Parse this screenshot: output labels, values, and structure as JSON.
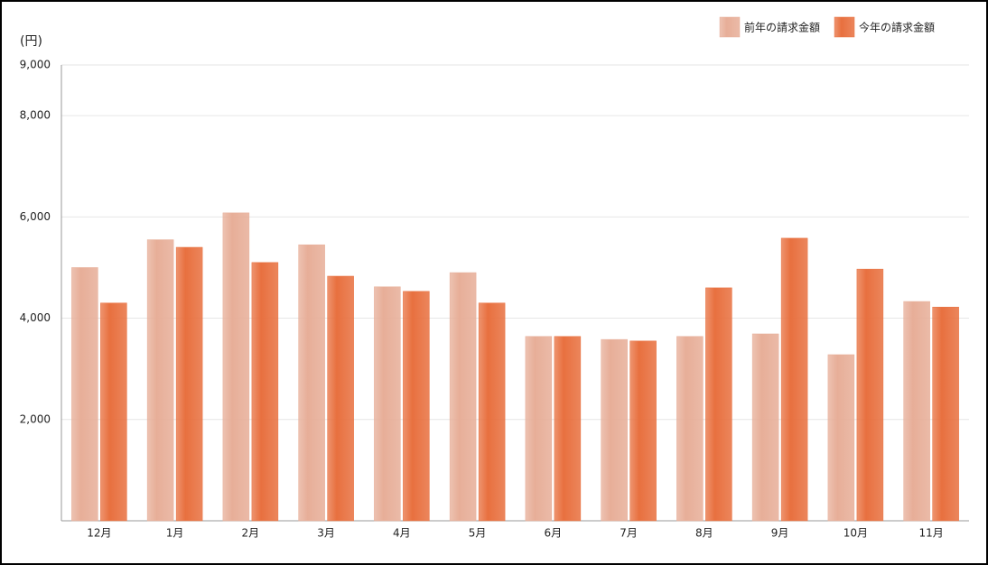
{
  "chart_data": {
    "type": "bar",
    "y_label": "(円)",
    "categories": [
      "12月",
      "1月",
      "2月",
      "3月",
      "4月",
      "5月",
      "6月",
      "7月",
      "8月",
      "9月",
      "10月",
      "11月"
    ],
    "series": [
      {
        "name": "前年の請求金額",
        "color": "#e7ae98",
        "values": [
          5000,
          5550,
          6080,
          5450,
          4620,
          4900,
          3640,
          3580,
          3640,
          3690,
          3280,
          4330
        ]
      },
      {
        "name": "今年の請求金額",
        "color": "#e8703f",
        "values": [
          4300,
          5400,
          5100,
          4830,
          4530,
          4300,
          3640,
          3550,
          4600,
          5580,
          4970,
          4220
        ]
      }
    ],
    "ylim": [
      0,
      9000
    ],
    "yticks": [
      {
        "value": 2000,
        "label": "2,000"
      },
      {
        "value": 4000,
        "label": "4,000"
      },
      {
        "value": 6000,
        "label": "6,000"
      },
      {
        "value": 8000,
        "label": "8,000"
      },
      {
        "value": 9000,
        "label": "9,000"
      }
    ],
    "grid": true,
    "legend": "top-right"
  }
}
